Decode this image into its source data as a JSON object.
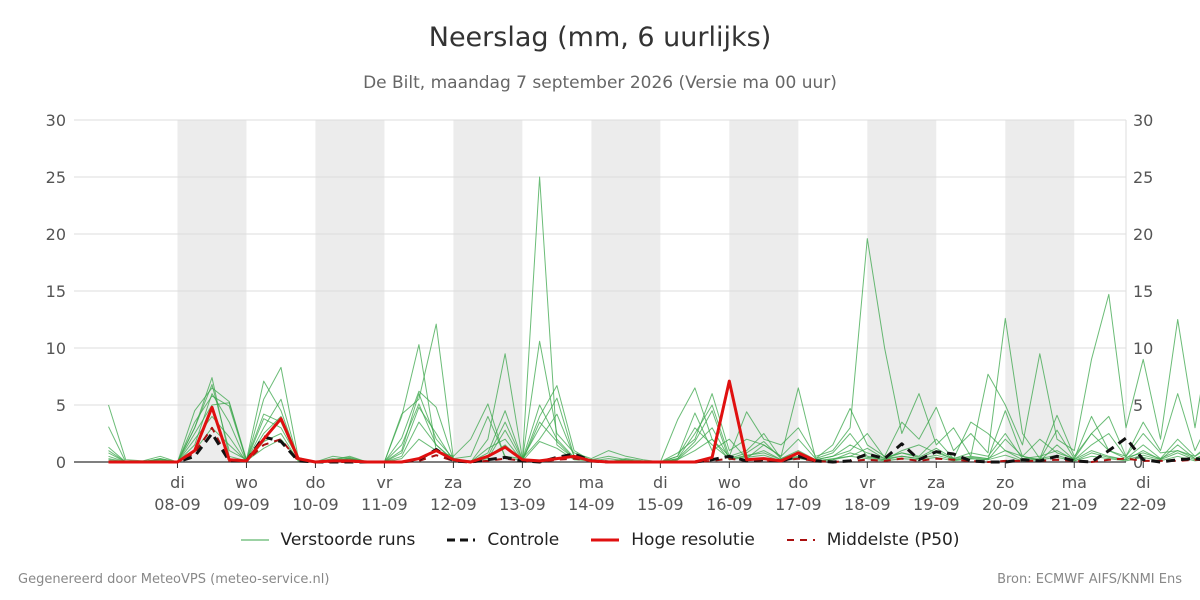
{
  "title": "Neerslag (mm, 6 uurlijks)",
  "subtitle": "De Bilt, maandag  7 september 2026 (Versie ma 00 uur)",
  "footer": {
    "left": "Gegenereerd door MeteoVPS (meteo-service.nl)",
    "right": "Bron: ECMWF AIFS/KNMI Ens"
  },
  "colors": {
    "ensemble": "#3aa64a",
    "controle": "#111111",
    "hoge_resolutie": "#e01010",
    "middelste": "#aa1010",
    "weekend_band": "#ececec",
    "grid": "#dddddd"
  },
  "legend": [
    {
      "key": "ensemble",
      "label": "Verstoorde runs",
      "style": "thin"
    },
    {
      "key": "controle",
      "label": "Controle",
      "style": "dashed"
    },
    {
      "key": "hoge_resolutie",
      "label": "Hoge resolutie",
      "style": "thick"
    },
    {
      "key": "middelste",
      "label": "Middelste (P50)",
      "style": "dashed-thin"
    }
  ],
  "chart_data": {
    "type": "line",
    "xlabel": "",
    "ylabel": "",
    "ylim": [
      0,
      30
    ],
    "yticks": [
      0,
      5,
      10,
      15,
      20,
      25,
      30
    ],
    "x_start": "07-09 00:00",
    "x_end": "22-09 00:00",
    "step_hours": 6,
    "day_ticks": [
      {
        "day": "di",
        "date": "08-09"
      },
      {
        "day": "wo",
        "date": "09-09"
      },
      {
        "day": "do",
        "date": "10-09"
      },
      {
        "day": "vr",
        "date": "11-09"
      },
      {
        "day": "za",
        "date": "12-09"
      },
      {
        "day": "zo",
        "date": "13-09"
      },
      {
        "day": "ma",
        "date": "14-09"
      },
      {
        "day": "di",
        "date": "15-09"
      },
      {
        "day": "wo",
        "date": "16-09"
      },
      {
        "day": "do",
        "date": "17-09"
      },
      {
        "day": "vr",
        "date": "18-09"
      },
      {
        "day": "za",
        "date": "19-09"
      },
      {
        "day": "zo",
        "date": "20-09"
      },
      {
        "day": "ma",
        "date": "21-09"
      },
      {
        "day": "di",
        "date": "22-09"
      }
    ],
    "shaded_days": [
      "08-09",
      "10-09",
      "12-09",
      "14-09",
      "16-09",
      "18-09",
      "20-09"
    ],
    "grid": true,
    "legend_position": "bottom",
    "series": [
      {
        "name": "Hoge resolutie",
        "key": "hoge_resolutie",
        "values": [
          0,
          0,
          0,
          0,
          0,
          1.0,
          4.8,
          0.2,
          0.1,
          2.0,
          3.8,
          0.3,
          0,
          0.1,
          0.1,
          0,
          0,
          0,
          0.3,
          1.0,
          0.2,
          0,
          0.5,
          1.3,
          0.2,
          0.1,
          0.3,
          0.5,
          0.1,
          0,
          0,
          0,
          0,
          0,
          0,
          0.4,
          7.1,
          0.2,
          0.3,
          0.1,
          0.8,
          0.1
        ]
      },
      {
        "name": "Controle",
        "key": "controle",
        "values": [
          0,
          0,
          0,
          0,
          0,
          0.5,
          2.5,
          0.1,
          0.1,
          2.2,
          1.8,
          0.1,
          0,
          0,
          0,
          0,
          0,
          0,
          0.2,
          1.1,
          0.1,
          0,
          0.2,
          0.4,
          0.1,
          0,
          0.4,
          0.7,
          0.1,
          0,
          0,
          0,
          0,
          0,
          0,
          0.2,
          0.5,
          0.1,
          0.2,
          0.1,
          0.5,
          0.1,
          0,
          0.1,
          0.7,
          0.3,
          1.6,
          0.2,
          0.9,
          0.7,
          0.1,
          0,
          0,
          0.2,
          0.1,
          0.5,
          0.1,
          0,
          1.0,
          2.1,
          0.2,
          0,
          0.2,
          0.3,
          0.1
        ]
      },
      {
        "name": "Middelste (P50)",
        "key": "middelste",
        "values": [
          0,
          0,
          0,
          0,
          0,
          0.8,
          3.0,
          0.1,
          0.1,
          1.5,
          2.0,
          0.1,
          0,
          0,
          0,
          0,
          0,
          0,
          0.1,
          0.6,
          0.1,
          0,
          0.1,
          0.3,
          0.1,
          0,
          0.2,
          0.3,
          0.1,
          0,
          0,
          0,
          0,
          0,
          0,
          0.1,
          0.3,
          0.1,
          0.1,
          0.1,
          0.3,
          0.1,
          0,
          0.1,
          0.2,
          0.1,
          0.3,
          0.1,
          0.3,
          0.2,
          0.1,
          0,
          0.1,
          0.1,
          0.1,
          0.2,
          0.1,
          0,
          0.2,
          0.3,
          0.1,
          0.1,
          0.1,
          0.2,
          0.1
        ]
      }
    ],
    "ensemble_runs": [
      [
        5.0,
        0.2,
        0.1,
        0.5,
        0,
        3.0,
        7.4,
        0.5,
        0.1,
        5.5,
        8.3,
        0.4,
        0,
        0.5,
        0.3,
        0,
        0,
        4.0,
        10.3,
        1.0,
        0.5,
        2.0,
        5.1,
        0.3,
        0.2,
        10.6,
        2.5,
        0.8,
        0.3,
        1.0,
        0.5,
        0.2,
        0,
        3.7,
        6.5,
        2.0,
        0.5,
        4.4,
        2.0,
        1.5,
        3.0,
        0.5,
        1.0,
        3.0,
        19.6,
        10.0,
        2.5,
        6.0,
        1.5,
        3.0,
        0.5,
        7.7,
        5.0,
        1.5,
        9.5,
        2.0,
        1.0,
        9.0,
        14.7,
        3.0,
        9.0,
        2.0,
        12.5,
        3.0,
        12.3
      ],
      [
        1.3,
        0,
        0,
        0.3,
        0,
        4.5,
        6.5,
        5.3,
        0.2,
        7.1,
        4.5,
        0.2,
        0,
        0.2,
        0.5,
        0,
        0,
        4.2,
        5.5,
        12.1,
        0.3,
        0,
        2.0,
        9.5,
        0.3,
        3.0,
        5.6,
        0.5,
        0.2,
        0,
        0.3,
        0.1,
        0,
        0.5,
        4.3,
        1.0,
        2.0,
        0.3,
        1.5,
        0.5,
        6.5,
        0.3,
        1.5,
        4.7,
        1.5,
        0.5,
        3.5,
        2.0,
        4.8,
        1.0,
        2.5,
        0.8,
        12.6,
        2.5,
        0.3,
        4.1,
        0.5,
        2.5,
        4.0,
        0.5,
        3.5,
        1.0,
        6.0,
        1.0,
        4.2
      ],
      [
        0.5,
        0,
        0,
        0.2,
        0,
        3.5,
        5.8,
        4.9,
        0.1,
        3.8,
        3.0,
        0.3,
        0,
        0.1,
        0.3,
        0,
        0,
        2.1,
        6.2,
        4.8,
        0.2,
        0,
        0.5,
        3.5,
        0.2,
        25.0,
        1.5,
        0.3,
        0.2,
        0,
        0.1,
        0,
        0,
        0.3,
        2.5,
        5.0,
        0.5,
        1.0,
        2.5,
        0.3,
        1.0,
        0.2,
        0.5,
        1.0,
        2.5,
        0.4,
        0.8,
        0.5,
        2.0,
        0.3,
        0.5,
        0.3,
        4.5,
        0.5,
        0.2,
        2.8,
        0.3,
        2.5,
        1.0,
        0.3,
        1.5,
        0.3,
        2.0,
        0.5,
        1.8
      ],
      [
        0.2,
        0,
        0,
        0.1,
        0,
        2.0,
        4.0,
        2.2,
        0,
        1.8,
        2.5,
        0.1,
        0,
        0,
        0.2,
        0,
        0,
        1.5,
        5.1,
        1.5,
        0.1,
        0,
        0.3,
        2.8,
        0.1,
        4.0,
        6.7,
        1.0,
        0.1,
        0,
        0.2,
        0,
        0,
        0.2,
        1.5,
        3.0,
        0.3,
        0.5,
        1.0,
        0.2,
        0.5,
        0.1,
        0.3,
        0.5,
        1.2,
        0.3,
        0.5,
        0.3,
        1.0,
        0.2,
        0.3,
        0.2,
        2.0,
        0.5,
        0.1,
        1.5,
        0.2,
        1.0,
        0.5,
        0.2,
        1.0,
        0.2,
        1.5,
        0.3,
        1.0
      ],
      [
        3.1,
        0,
        0.1,
        0.2,
        0,
        3.0,
        6.8,
        1.0,
        0.2,
        4.2,
        3.5,
        0.3,
        0,
        0.3,
        0.1,
        0,
        0,
        1.0,
        6.0,
        2.0,
        0.3,
        0.5,
        4.0,
        0.5,
        0.3,
        2.0,
        4.2,
        0.5,
        0.2,
        0.5,
        0.2,
        0,
        0,
        0.8,
        2.0,
        6.0,
        1.0,
        2.0,
        1.5,
        0.5,
        2.0,
        0.3,
        0.8,
        2.5,
        0.5,
        0.2,
        1.0,
        1.5,
        0.8,
        0.3,
        3.5,
        2.5,
        1.0,
        0.5,
        2.0,
        0.8,
        0.3,
        4.0,
        1.0,
        0.5,
        2.5,
        0.8,
        1.0,
        0.5,
        1.5
      ],
      [
        1.0,
        0,
        0,
        0.1,
        0,
        2.5,
        5.0,
        5.2,
        0.1,
        3.0,
        5.5,
        0.2,
        0,
        0.2,
        0.4,
        0,
        0,
        0.5,
        3.5,
        1.5,
        0.2,
        0,
        0.8,
        4.5,
        0.2,
        5.0,
        2.0,
        0.4,
        0.1,
        0.3,
        0.1,
        0,
        0,
        0.5,
        3.0,
        1.5,
        0.3,
        0.8,
        1.8,
        0.3,
        0.8,
        0.2,
        0.5,
        1.5,
        0.8,
        0.3,
        0.8,
        0.4,
        1.2,
        0.3,
        0.8,
        0.5,
        2.5,
        0.3,
        0.5,
        1.0,
        0.2,
        1.5,
        2.5,
        0.4,
        0.8,
        0.3,
        1.0,
        0.3,
        0.8
      ],
      [
        0.3,
        0,
        0,
        0,
        0,
        1.5,
        6.0,
        3.5,
        0,
        2.5,
        4.0,
        0.1,
        0,
        0.1,
        0.3,
        0,
        0,
        0.8,
        4.8,
        2.5,
        0.1,
        0,
        1.2,
        2.0,
        0.1,
        3.5,
        1.8,
        0.3,
        0.1,
        0,
        0.1,
        0,
        0,
        0.3,
        1.8,
        4.5,
        0.2,
        0.6,
        0.8,
        0.2,
        0.4,
        0.1,
        0.2,
        0.8,
        0.4,
        0.2,
        0.5,
        0.3,
        0.6,
        0.2,
        0.4,
        0.3,
        1.0,
        0.2,
        0.3,
        0.6,
        0.1,
        0.8,
        0.4,
        0.2,
        0.6,
        0.2,
        0.8,
        0.2,
        0.5
      ],
      [
        0.8,
        0,
        0,
        0.3,
        0,
        1.0,
        3.0,
        1.5,
        0.1,
        1.2,
        2.0,
        0.2,
        0,
        0.2,
        0.1,
        0,
        0,
        0.3,
        2.0,
        1.0,
        0.2,
        0.1,
        0.5,
        1.5,
        0.1,
        1.8,
        1.2,
        0.2,
        0.1,
        0.1,
        0.1,
        0,
        0,
        0.2,
        1.0,
        2.0,
        0.2,
        0.4,
        0.6,
        0.1,
        0.3,
        0.1,
        0.2,
        0.5,
        0.3,
        0.1,
        0.3,
        0.2,
        0.4,
        0.1,
        0.3,
        0.2,
        0.6,
        0.1,
        0.2,
        0.4,
        0.1,
        0.5,
        0.3,
        0.1,
        0.4,
        0.1,
        0.5,
        0.1,
        0.3
      ]
    ]
  }
}
